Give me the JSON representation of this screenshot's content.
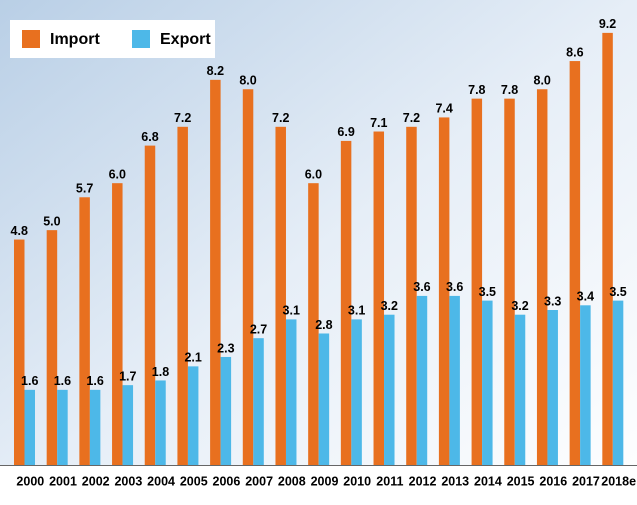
{
  "chart_data": {
    "type": "bar",
    "categories": [
      "2000",
      "2001",
      "2002",
      "2003",
      "2004",
      "2005",
      "2006",
      "2007",
      "2008",
      "2009",
      "2010",
      "2011",
      "2012",
      "2013",
      "2014",
      "2015",
      "2016",
      "2017",
      "2018e"
    ],
    "series": [
      {
        "name": "Import",
        "color": "#e8701f",
        "values": [
          4.8,
          5.0,
          5.7,
          6.0,
          6.8,
          7.2,
          8.2,
          8.0,
          7.2,
          6.0,
          6.9,
          7.1,
          7.2,
          7.4,
          7.8,
          7.8,
          8.0,
          8.6,
          9.2
        ],
        "value_labels": [
          "4.8",
          "5.0",
          "5.7",
          "6.0",
          "6.8",
          "7.2",
          "8.2",
          "8.0",
          "7.2",
          "6.0",
          "6.9",
          "7.1",
          "7.2",
          "7.4",
          "7.8",
          "7.8",
          "8.0",
          "8.6",
          "9.2"
        ]
      },
      {
        "name": "Export",
        "color": "#4db8e8",
        "values": [
          1.6,
          1.6,
          1.6,
          1.7,
          1.8,
          2.1,
          2.3,
          2.7,
          3.1,
          2.8,
          3.1,
          3.2,
          3.6,
          3.6,
          3.5,
          3.2,
          3.3,
          3.4,
          3.5
        ],
        "value_labels": [
          "1.6",
          "1.6",
          "1.6",
          "1.7",
          "1.8",
          "2.1",
          "2.3",
          "2.7",
          "3.1",
          "2.8",
          "3.1",
          "3.2",
          "3.6",
          "3.6",
          "3.5",
          "3.2",
          "3.3",
          "3.4",
          "3.5"
        ]
      }
    ],
    "ylim": [
      0,
      9.9
    ],
    "legend": "top-left"
  }
}
